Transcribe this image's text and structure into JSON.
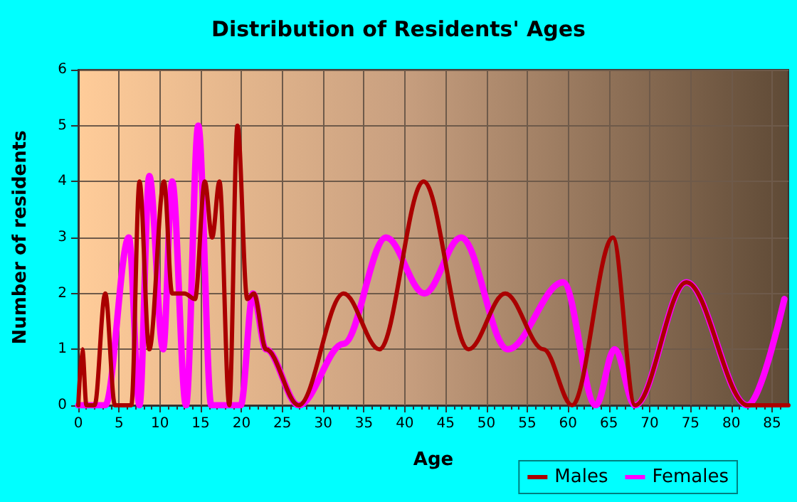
{
  "chart_data": {
    "type": "line",
    "title": "Distribution of Residents' Ages",
    "xlabel": "Age",
    "ylabel": "Number of residents",
    "xlim": [
      0,
      87
    ],
    "xticks": [
      0,
      5,
      10,
      15,
      20,
      25,
      30,
      35,
      40,
      45,
      50,
      55,
      60,
      65,
      70,
      75,
      80,
      85
    ],
    "ylim": [
      0,
      6
    ],
    "yticks": [
      0,
      1,
      2,
      3,
      4,
      5,
      6
    ],
    "grid": true,
    "legend": "bottom right",
    "marker": "none",
    "line_style": "solid",
    "series": [
      {
        "name": "Males",
        "color": "#aa0000",
        "x": [
          0,
          0.5,
          1,
          2,
          3.3,
          4.5,
          6.5,
          7.5,
          8.7,
          10.5,
          11.5,
          13,
          14.3,
          15.5,
          16.4,
          17.3,
          18.5,
          19.5,
          20.7,
          21.5,
          23,
          27,
          32.5,
          36.9,
          42.3,
          47.8,
          52.3,
          57,
          60.5,
          65.5,
          68.2,
          74.5,
          82,
          87
        ],
        "values": [
          0,
          1,
          0,
          0,
          2,
          0,
          0,
          4,
          1,
          4,
          2,
          2,
          1.9,
          4,
          3,
          4,
          0,
          5,
          1.9,
          2,
          1,
          0,
          2,
          1,
          4,
          1,
          2,
          1,
          0,
          3,
          0,
          2.2,
          0,
          0
        ]
      },
      {
        "name": "Females",
        "color": "#ff00ff",
        "x": [
          0,
          3.3,
          6.2,
          7.5,
          8.7,
          10.4,
          11.5,
          13.2,
          14.7,
          16.3,
          17.8,
          19.9,
          21.4,
          23,
          27,
          32.5,
          37.7,
          42.4,
          46.9,
          52.6,
          59.4,
          63.4,
          65.7,
          68.2,
          74.5,
          82,
          86.5
        ],
        "values": [
          0,
          0,
          3,
          0,
          4.1,
          1,
          4,
          0,
          5,
          0,
          0,
          0,
          2,
          1,
          0,
          1.1,
          3,
          2,
          3,
          1,
          2.2,
          0,
          1,
          0,
          2.2,
          0,
          1.9
        ]
      }
    ]
  }
}
